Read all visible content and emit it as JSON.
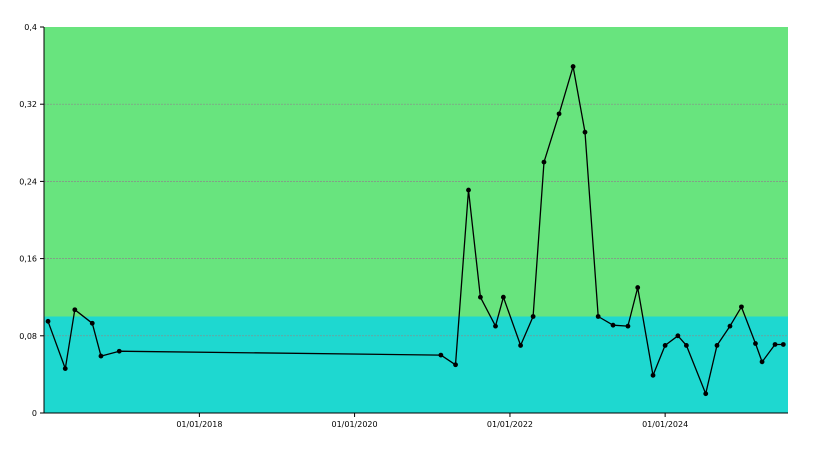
{
  "chart_data": {
    "type": "line",
    "title": "",
    "xlabel": "",
    "ylabel": "",
    "x_range": [
      "2016-01-01",
      "2025-08-01"
    ],
    "ylim": [
      0,
      0.4
    ],
    "y_ticks": [
      0,
      0.08,
      0.16,
      0.24,
      0.32,
      0.4
    ],
    "y_tick_labels": [
      "0",
      "0,08",
      "0,16",
      "0,24",
      "0,32",
      "0,4"
    ],
    "x_ticks": [
      "2018-01-01",
      "2020-01-01",
      "2022-01-01",
      "2024-01-01"
    ],
    "x_tick_labels": [
      "01/01/2018",
      "01/01/2020",
      "01/01/2022",
      "01/01/2024"
    ],
    "grid": true,
    "bands": [
      {
        "from": 0,
        "to": 0.1,
        "color": "#1ed8d0"
      },
      {
        "from": 0.1,
        "to": 0.4,
        "color": "#68e47e"
      }
    ],
    "line_color": "#000000",
    "series": [
      {
        "x": [
          "2016-01-20",
          "2016-04-10",
          "2016-05-25",
          "2016-08-15",
          "2016-09-25",
          "2016-12-20",
          "2021-02-10",
          "2021-04-20",
          "2021-06-20",
          "2021-08-15",
          "2021-10-25",
          "2021-12-01",
          "2022-02-20",
          "2022-04-20",
          "2022-06-10",
          "2022-08-20",
          "2022-10-25",
          "2022-12-20",
          "2023-02-20",
          "2023-05-01",
          "2023-07-10",
          "2023-08-25",
          "2023-11-05",
          "2024-01-01",
          "2024-03-01",
          "2024-04-10",
          "2024-07-10",
          "2024-09-01",
          "2024-11-01",
          "2024-12-25",
          "2025-03-01",
          "2025-04-01",
          "2025-06-01",
          "2025-07-10"
        ],
        "values": [
          0.095,
          0.046,
          0.107,
          0.093,
          0.059,
          0.064,
          0.06,
          0.05,
          0.231,
          0.12,
          0.09,
          0.12,
          0.07,
          0.1,
          0.26,
          0.31,
          0.359,
          0.291,
          0.1,
          0.091,
          0.09,
          0.13,
          0.039,
          0.07,
          0.08,
          0.07,
          0.02,
          0.07,
          0.09,
          0.11,
          0.072,
          0.053,
          0.071,
          0.071
        ]
      }
    ]
  }
}
